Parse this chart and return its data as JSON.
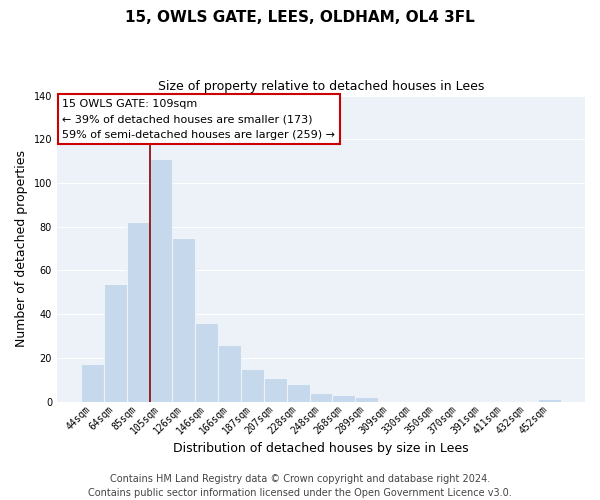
{
  "title": "15, OWLS GATE, LEES, OLDHAM, OL4 3FL",
  "subtitle": "Size of property relative to detached houses in Lees",
  "xlabel": "Distribution of detached houses by size in Lees",
  "ylabel": "Number of detached properties",
  "bar_labels": [
    "44sqm",
    "64sqm",
    "85sqm",
    "105sqm",
    "126sqm",
    "146sqm",
    "166sqm",
    "187sqm",
    "207sqm",
    "228sqm",
    "248sqm",
    "268sqm",
    "289sqm",
    "309sqm",
    "330sqm",
    "350sqm",
    "370sqm",
    "391sqm",
    "411sqm",
    "432sqm",
    "452sqm"
  ],
  "bar_values": [
    17,
    54,
    82,
    111,
    75,
    36,
    26,
    15,
    11,
    8,
    4,
    3,
    2,
    0,
    0,
    0,
    0,
    0,
    0,
    0,
    1
  ],
  "bar_color": "#c5d8ec",
  "vline_x_index": 3,
  "vline_color": "#8b0000",
  "ylim": [
    0,
    140
  ],
  "annotation_title": "15 OWLS GATE: 109sqm",
  "annotation_line1": "← 39% of detached houses are smaller (173)",
  "annotation_line2": "59% of semi-detached houses are larger (259) →",
  "annotation_box_facecolor": "#ffffff",
  "annotation_box_edgecolor": "#cc0000",
  "footer1": "Contains HM Land Registry data © Crown copyright and database right 2024.",
  "footer2": "Contains public sector information licensed under the Open Government Licence v3.0.",
  "bg_color": "#edf2f9",
  "grid_color": "#ffffff",
  "title_fontsize": 11,
  "subtitle_fontsize": 9,
  "ylabel_fontsize": 9,
  "xlabel_fontsize": 9,
  "tick_fontsize": 7,
  "footer_fontsize": 7
}
